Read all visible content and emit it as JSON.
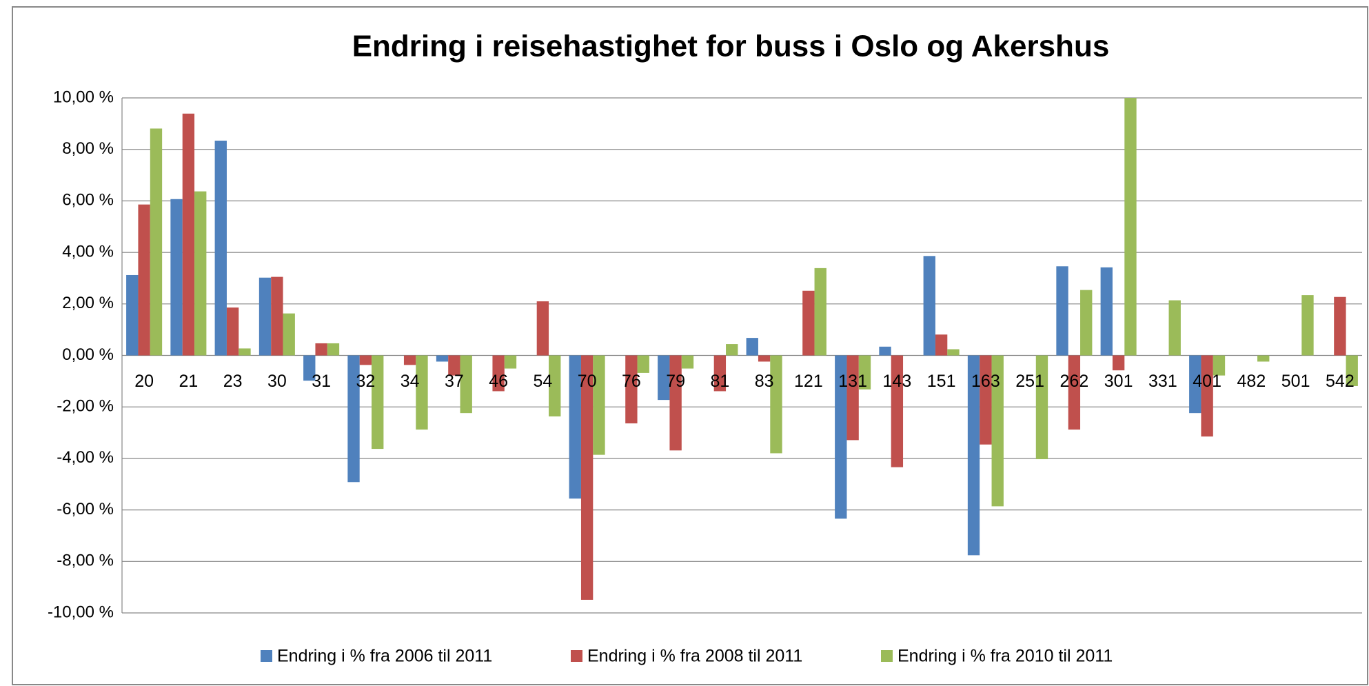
{
  "chart_data": {
    "type": "bar",
    "title": "Endring i reisehastighet for buss i Oslo og Akershus",
    "categories": [
      "20",
      "21",
      "23",
      "30",
      "31",
      "32",
      "34",
      "37",
      "46",
      "54",
      "70",
      "76",
      "79",
      "81",
      "83",
      "121",
      "131",
      "143",
      "151",
      "163",
      "251",
      "262",
      "301",
      "331",
      "401",
      "482",
      "501",
      "542"
    ],
    "series": [
      {
        "name": "Endring i % fra 2006 til 2011",
        "color": "#4f81bd",
        "values": [
          3.12,
          6.07,
          8.34,
          3.02,
          -0.98,
          -4.92,
          null,
          -0.24,
          null,
          null,
          -5.56,
          null,
          -1.73,
          null,
          0.68,
          null,
          -6.34,
          0.34,
          3.86,
          -7.76,
          null,
          3.46,
          3.42,
          null,
          -2.24,
          null,
          null,
          null
        ]
      },
      {
        "name": "Endring i % fra 2008 til 2011",
        "color": "#c0504d",
        "values": [
          5.86,
          9.39,
          1.86,
          3.05,
          0.47,
          -0.37,
          -0.37,
          -0.78,
          -1.39,
          2.1,
          -9.49,
          -2.64,
          -3.69,
          -1.39,
          -0.24,
          2.51,
          -3.29,
          -4.34,
          0.81,
          -3.46,
          null,
          -2.88,
          -0.58,
          null,
          -3.15,
          null,
          null,
          2.27
        ]
      },
      {
        "name": "Endring i % fra 2010 til 2011",
        "color": "#9bbb59",
        "values": [
          8.81,
          6.37,
          0.27,
          1.63,
          0.47,
          -3.63,
          -2.88,
          -2.24,
          -0.51,
          -2.37,
          -3.86,
          -0.68,
          -0.51,
          0.44,
          -3.8,
          3.39,
          -1.32,
          null,
          0.24,
          -5.86,
          -4.03,
          2.54,
          10.0,
          2.14,
          -0.78,
          -0.24,
          2.34,
          -1.19
        ]
      }
    ],
    "ylim": [
      -10,
      10
    ],
    "yticks": [
      {
        "value": -10,
        "label": "-10,00 %"
      },
      {
        "value": -8,
        "label": "-8,00 %"
      },
      {
        "value": -6,
        "label": "-6,00 %"
      },
      {
        "value": -4,
        "label": "-4,00 %"
      },
      {
        "value": -2,
        "label": "-2,00 %"
      },
      {
        "value": 0,
        "label": "0,00 %"
      },
      {
        "value": 2,
        "label": "2,00 %"
      },
      {
        "value": 4,
        "label": "4,00 %"
      },
      {
        "value": 6,
        "label": "6,00 %"
      },
      {
        "value": 8,
        "label": "8,00 %"
      },
      {
        "value": 10,
        "label": "10,00 %"
      }
    ],
    "grid": true,
    "legend": "bottom"
  }
}
